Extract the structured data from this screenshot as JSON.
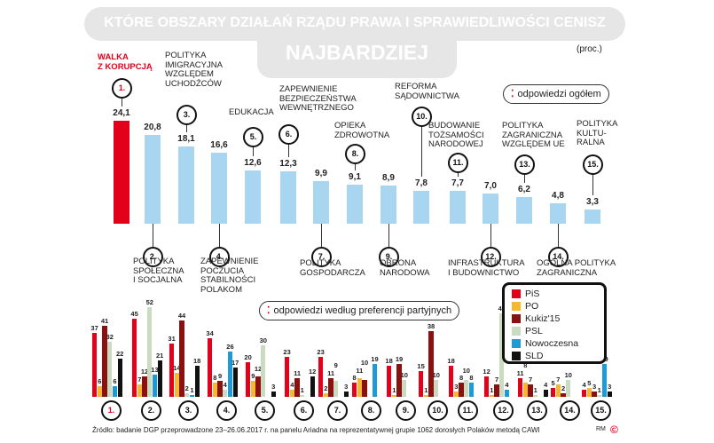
{
  "header": {
    "title": "KTÓRE OBSZARY DZIAŁAŃ RZĄDU PRAWA I SPRAWIEDLIWOŚCI CENISZ",
    "subtitle": "NAJBARDZIEJ",
    "unit": "(proc.)"
  },
  "pills": {
    "overall": "odpowiedzi ogółem",
    "party": "odpowiedzi według preferencji partyjnych"
  },
  "colors": {
    "highlight": "#e2001a",
    "bar": "#a8d6f1",
    "PiS": "#e2001a",
    "PO": "#f7b733",
    "Kukiz'15": "#8b1010",
    "PSL": "#c9dcc2",
    "Nowoczesna": "#1c9bd7",
    "SLD": "#111111"
  },
  "chart_data": [
    {
      "type": "bar",
      "title": "odpowiedzi ogółem",
      "ylabel": "proc.",
      "categories": [
        "1.",
        "2.",
        "3.",
        "4.",
        "5.",
        "6.",
        "7.",
        "8.",
        "9.",
        "10.",
        "11.",
        "12.",
        "13.",
        "14.",
        "15."
      ],
      "labels": [
        "WALKA\nZ KORUPCJĄ",
        "POLITYKA\nSPOŁECZNA\nI SOCJALNA",
        "POLITYKA\nIMIGRACYJNA\nWZGLĘDEM\nUCHODŹCÓW",
        "ZAPEWNIENIE\nPOCZUCIA\nSTABILNOŚCI\nPOLAKOM",
        "EDUKACJA",
        "ZAPEWNIENIE\nBEZPIECZEŃSTWA\nWEWNĘTRZNEGO",
        "POLITYKA\nGOSPODARCZA",
        "OPIEKA\nZDROWOTNA",
        "OBRONA\nNARODOWA",
        "REFORMA\nSĄDOWNICTWA",
        "BUDOWANIE\nTOŻSAMOŚCI\nNARODOWEJ",
        "INFRASTRUKTURA\nI BUDOWNICTWO",
        "POLITYKA\nZAGRANICZNA\nWZGLĘDEM UE",
        "OGÓLNA POLITYKA\nZAGRANICZNA",
        "POLITYKA\nKULTU-\nRALNA"
      ],
      "values": [
        24.1,
        20.8,
        18.1,
        16.6,
        12.6,
        12.3,
        9.9,
        9.1,
        8.9,
        7.8,
        7.7,
        7.0,
        6.2,
        4.8,
        3.3
      ],
      "value_labels": [
        "24,1",
        "20,8",
        "18,1",
        "16,6",
        "12,6",
        "12,3",
        "9,9",
        "9,1",
        "8,9",
        "7,8",
        "7,7",
        "7,0",
        "6,2",
        "4,8",
        "3,3"
      ]
    },
    {
      "type": "bar",
      "title": "odpowiedzi według preferencji partyjnych",
      "categories": [
        "1.",
        "2.",
        "3.",
        "4.",
        "5.",
        "6.",
        "7.",
        "8.",
        "9.",
        "10.",
        "11.",
        "12.",
        "13.",
        "14.",
        "15."
      ],
      "series": [
        {
          "name": "PiS",
          "values": [
            37,
            45,
            31,
            34,
            20,
            23,
            23,
            8,
            18,
            15,
            18,
            12,
            11,
            5,
            4
          ]
        },
        {
          "name": "PO",
          "values": [
            6,
            7,
            14,
            8,
            9,
            4,
            2,
            11,
            1,
            1,
            3,
            1,
            8,
            7,
            5
          ]
        },
        {
          "name": "Kukiz'15",
          "values": [
            41,
            12,
            44,
            9,
            12,
            11,
            11,
            10,
            19,
            38,
            8,
            7,
            7,
            2,
            3
          ]
        },
        {
          "name": "PSL",
          "values": [
            32,
            52,
            2,
            4,
            30,
            1,
            9,
            null,
            10,
            10,
            10,
            48,
            1,
            10,
            1
          ]
        },
        {
          "name": "Nowoczesna",
          "values": [
            6,
            13,
            1,
            26,
            null,
            null,
            null,
            19,
            null,
            null,
            8,
            4,
            null,
            null,
            19
          ]
        },
        {
          "name": "SLD",
          "values": [
            22,
            21,
            18,
            17,
            3,
            12,
            3,
            null,
            null,
            null,
            null,
            null,
            4,
            null,
            3
          ]
        }
      ]
    }
  ],
  "footer": {
    "source": "Źródło: badanie DGP przeprowadzone 23–26.06.2017 r. na panelu Ariadna na reprezentatywnej grupie 1062 dorosłych Polaków metodą CAWI",
    "credit": "RM",
    "logo": "©"
  }
}
